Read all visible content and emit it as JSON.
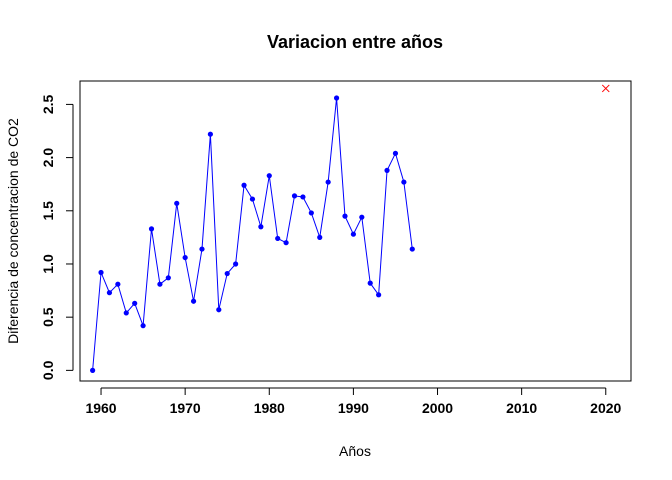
{
  "chart_data": {
    "type": "line",
    "title": "Variacion entre años",
    "xlabel": "Años",
    "ylabel": "Diferencia de concentracion de CO2",
    "xlim": [
      1957.5,
      2023
    ],
    "ylim": [
      -0.1,
      2.72
    ],
    "xticks": [
      1960,
      1970,
      1980,
      1990,
      2000,
      2010,
      2020
    ],
    "yticks": [
      0.0,
      0.5,
      1.0,
      1.5,
      2.0,
      2.5
    ],
    "xtick_labels": [
      "1960",
      "1970",
      "1980",
      "1990",
      "2000",
      "2010",
      "2020"
    ],
    "ytick_labels": [
      "0.0",
      "0.5",
      "1.0",
      "1.5",
      "2.0",
      "2.5"
    ],
    "grid": false,
    "series": [
      {
        "color": "#0000FF",
        "marker": "filled-circle",
        "x": [
          1959,
          1960,
          1961,
          1962,
          1963,
          1964,
          1965,
          1966,
          1967,
          1968,
          1969,
          1970,
          1971,
          1972,
          1973,
          1974,
          1975,
          1976,
          1977,
          1978,
          1979,
          1980,
          1981,
          1982,
          1983,
          1984,
          1985,
          1986,
          1987,
          1988,
          1989,
          1990,
          1991,
          1992,
          1993,
          1994,
          1995,
          1996,
          1997
        ],
        "y": [
          0.0,
          0.92,
          0.73,
          0.81,
          0.54,
          0.63,
          0.42,
          1.33,
          0.81,
          0.87,
          1.57,
          1.06,
          0.65,
          1.14,
          2.22,
          0.57,
          0.91,
          1.0,
          1.74,
          1.61,
          1.35,
          1.83,
          1.24,
          1.2,
          1.64,
          1.63,
          1.48,
          1.25,
          1.77,
          2.56,
          1.45,
          1.28,
          1.44,
          0.82,
          0.71,
          1.88,
          2.04,
          1.77,
          1.14
        ]
      }
    ],
    "extra_points": [
      {
        "x": 2020,
        "y": 2.65,
        "color": "#FF0000",
        "marker": "x"
      }
    ]
  }
}
